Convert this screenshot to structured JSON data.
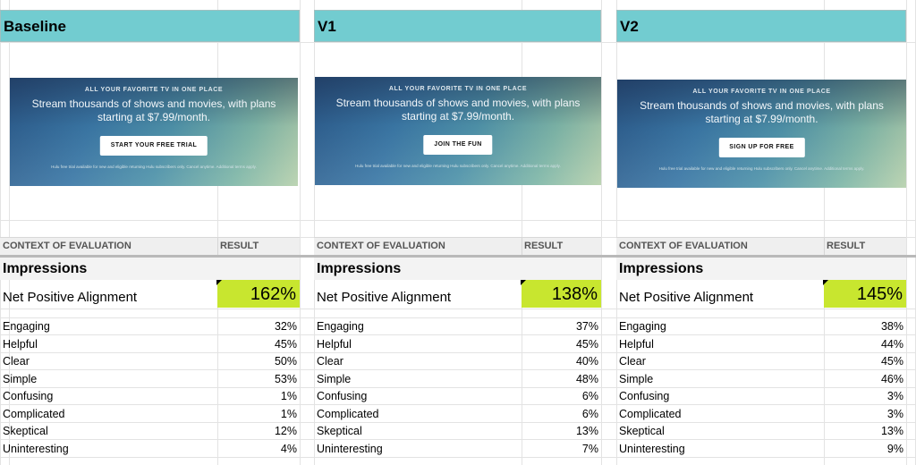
{
  "colors": {
    "header_band": "#72ccd0",
    "highlight": "#c8e62f"
  },
  "columns_header": {
    "context": "CONTEXT OF EVALUATION",
    "result": "RESULT"
  },
  "section_label": "Impressions",
  "npa_label": "Net Positive Alignment",
  "variants": [
    {
      "name": "Baseline",
      "banner": {
        "tag": "ALL YOUR FAVORITE TV IN ONE PLACE",
        "headline": "Stream thousands of shows and movies, with plans starting at $7.99/month.",
        "cta": "START YOUR FREE TRIAL",
        "fine": "Hulu free trial available for new and eligible returning Hulu subscribers only. Cancel anytime. Additional terms apply."
      },
      "npa": "162%",
      "metrics": [
        {
          "label": "Engaging",
          "value": "32%"
        },
        {
          "label": "Helpful",
          "value": "45%"
        },
        {
          "label": "Clear",
          "value": "50%"
        },
        {
          "label": "Simple",
          "value": "53%"
        },
        {
          "label": "Confusing",
          "value": "1%"
        },
        {
          "label": "Complicated",
          "value": "1%"
        },
        {
          "label": "Skeptical",
          "value": "12%"
        },
        {
          "label": "Uninteresting",
          "value": "4%"
        }
      ]
    },
    {
      "name": "V1",
      "banner": {
        "tag": "ALL YOUR FAVORITE TV IN ONE PLACE",
        "headline": "Stream thousands of shows and movies, with plans starting at $7.99/month.",
        "cta": "JOIN THE FUN",
        "fine": "Hulu free trial available for new and eligible returning Hulu subscribers only. Cancel anytime. Additional terms apply."
      },
      "npa": "138%",
      "metrics": [
        {
          "label": "Engaging",
          "value": "37%"
        },
        {
          "label": "Helpful",
          "value": "45%"
        },
        {
          "label": "Clear",
          "value": "40%"
        },
        {
          "label": "Simple",
          "value": "48%"
        },
        {
          "label": "Confusing",
          "value": "6%"
        },
        {
          "label": "Complicated",
          "value": "6%"
        },
        {
          "label": "Skeptical",
          "value": "13%"
        },
        {
          "label": "Uninteresting",
          "value": "7%"
        }
      ]
    },
    {
      "name": "V2",
      "banner": {
        "tag": "ALL YOUR FAVORITE TV IN ONE PLACE",
        "headline": "Stream thousands of shows and movies, with plans starting at $7.99/month.",
        "cta": "SIGN UP FOR FREE",
        "fine": "Hulu free trial available for new and eligible returning Hulu subscribers only. Cancel anytime. Additional terms apply."
      },
      "npa": "145%",
      "metrics": [
        {
          "label": "Engaging",
          "value": "38%"
        },
        {
          "label": "Helpful",
          "value": "44%"
        },
        {
          "label": "Clear",
          "value": "45%"
        },
        {
          "label": "Simple",
          "value": "46%"
        },
        {
          "label": "Confusing",
          "value": "3%"
        },
        {
          "label": "Complicated",
          "value": "3%"
        },
        {
          "label": "Skeptical",
          "value": "13%"
        },
        {
          "label": "Uninteresting",
          "value": "9%"
        }
      ]
    }
  ]
}
